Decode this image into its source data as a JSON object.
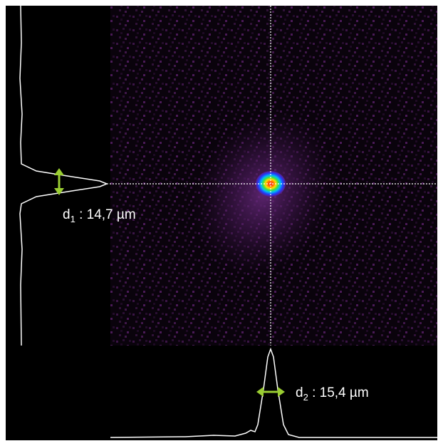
{
  "labels": [
    {
      "symbol": "d",
      "subscript": "1",
      "text": " : 14,7 µm"
    },
    {
      "symbol": "d",
      "subscript": "2",
      "text": " : 15,4 µm"
    }
  ]
}
